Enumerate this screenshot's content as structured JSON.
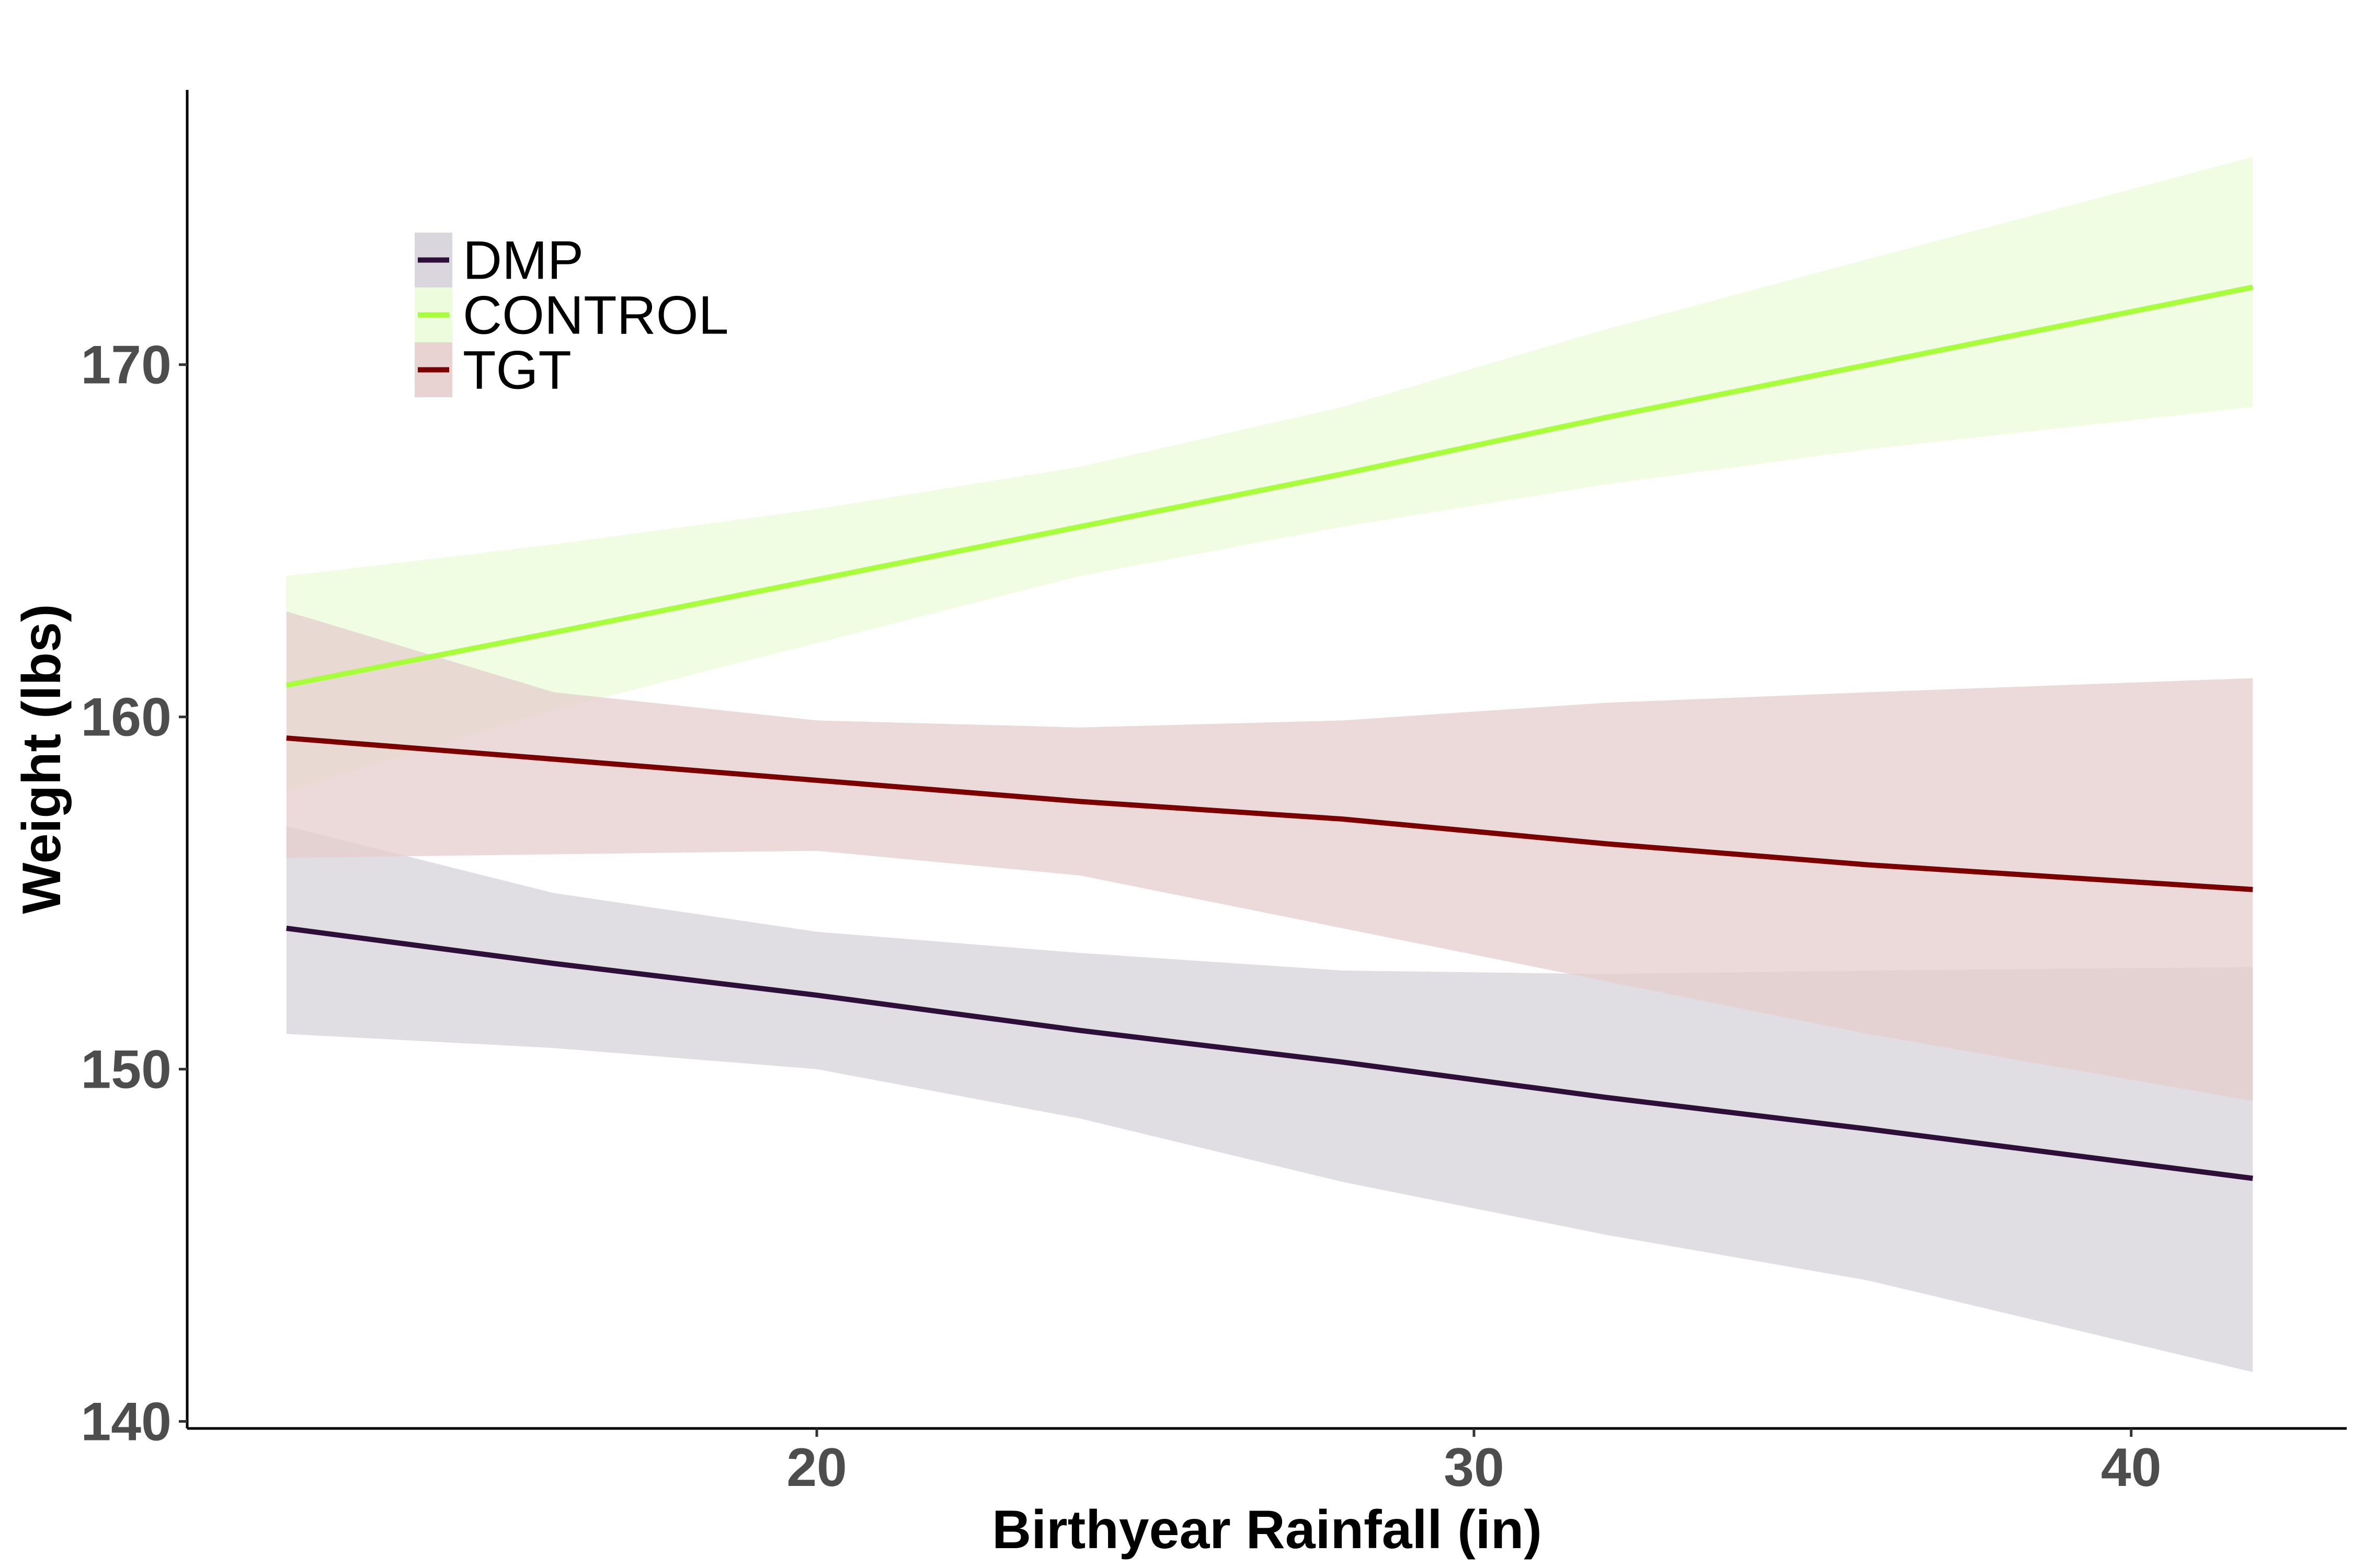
{
  "chart_data": {
    "type": "line",
    "xlabel": "Birthyear Rainfall (in)",
    "ylabel": "Weight (lbs)",
    "xlim": [
      10.42,
      43.28
    ],
    "ylim": [
      139.8,
      177.8
    ],
    "x_ticks": [
      20,
      30,
      40
    ],
    "y_ticks": [
      140,
      150,
      160,
      170
    ],
    "grid": false,
    "legend_position": "top-left",
    "series": [
      {
        "name": "DMP",
        "color": "#2d0f3a",
        "fill": "#d6d1da",
        "x": [
          11.93,
          16,
          20,
          24,
          28,
          32,
          36,
          41.85
        ],
        "y": [
          154.0,
          153.0,
          152.1,
          151.1,
          150.2,
          149.2,
          148.3,
          146.9
        ],
        "lower": [
          151.0,
          150.6,
          150.0,
          148.6,
          146.8,
          145.3,
          144.0,
          141.4
        ],
        "upper": [
          156.9,
          155.0,
          153.9,
          153.3,
          152.8,
          152.7,
          152.8,
          152.9
        ]
      },
      {
        "name": "CONTROL",
        "color": "#a6ff3a",
        "fill": "#ebfcd8",
        "x": [
          11.93,
          16,
          20,
          24,
          28,
          32,
          36,
          41.85
        ],
        "y": [
          160.9,
          162.4,
          163.9,
          165.4,
          166.9,
          168.5,
          170.0,
          172.2
        ],
        "lower": [
          157.9,
          160.2,
          162.1,
          164.0,
          165.4,
          166.6,
          167.6,
          168.8
        ],
        "upper": [
          164.0,
          164.9,
          165.9,
          167.1,
          168.8,
          171.0,
          173.0,
          175.9
        ]
      },
      {
        "name": "TGT",
        "color": "#7b0000",
        "fill": "#e5cdcd",
        "x": [
          11.93,
          16,
          20,
          24,
          28,
          32,
          36,
          41.85
        ],
        "y": [
          159.4,
          158.8,
          158.2,
          157.6,
          157.1,
          156.4,
          155.8,
          155.1
        ],
        "lower": [
          156.0,
          156.1,
          156.2,
          155.5,
          154.0,
          152.5,
          151.0,
          149.1
        ],
        "upper": [
          163.0,
          160.7,
          159.9,
          159.7,
          159.9,
          160.4,
          160.7,
          161.1
        ]
      }
    ]
  }
}
